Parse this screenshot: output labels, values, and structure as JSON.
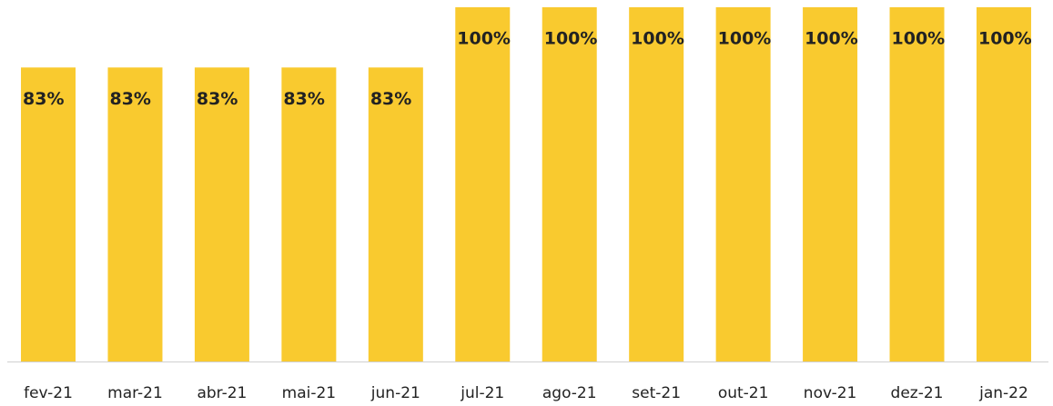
{
  "chart_data": {
    "type": "bar",
    "categories": [
      "fev-21",
      "mar-21",
      "abr-21",
      "mai-21",
      "jun-21",
      "jul-21",
      "ago-21",
      "set-21",
      "out-21",
      "nov-21",
      "dez-21",
      "jan-22"
    ],
    "values": [
      83,
      83,
      83,
      83,
      83,
      100,
      100,
      100,
      100,
      100,
      100,
      100
    ],
    "value_labels": [
      "83%",
      "83%",
      "83%",
      "83%",
      "83%",
      "100%",
      "100%",
      "100%",
      "100%",
      "100%",
      "100%",
      "100%"
    ],
    "color": "#f9ca2f"
  }
}
